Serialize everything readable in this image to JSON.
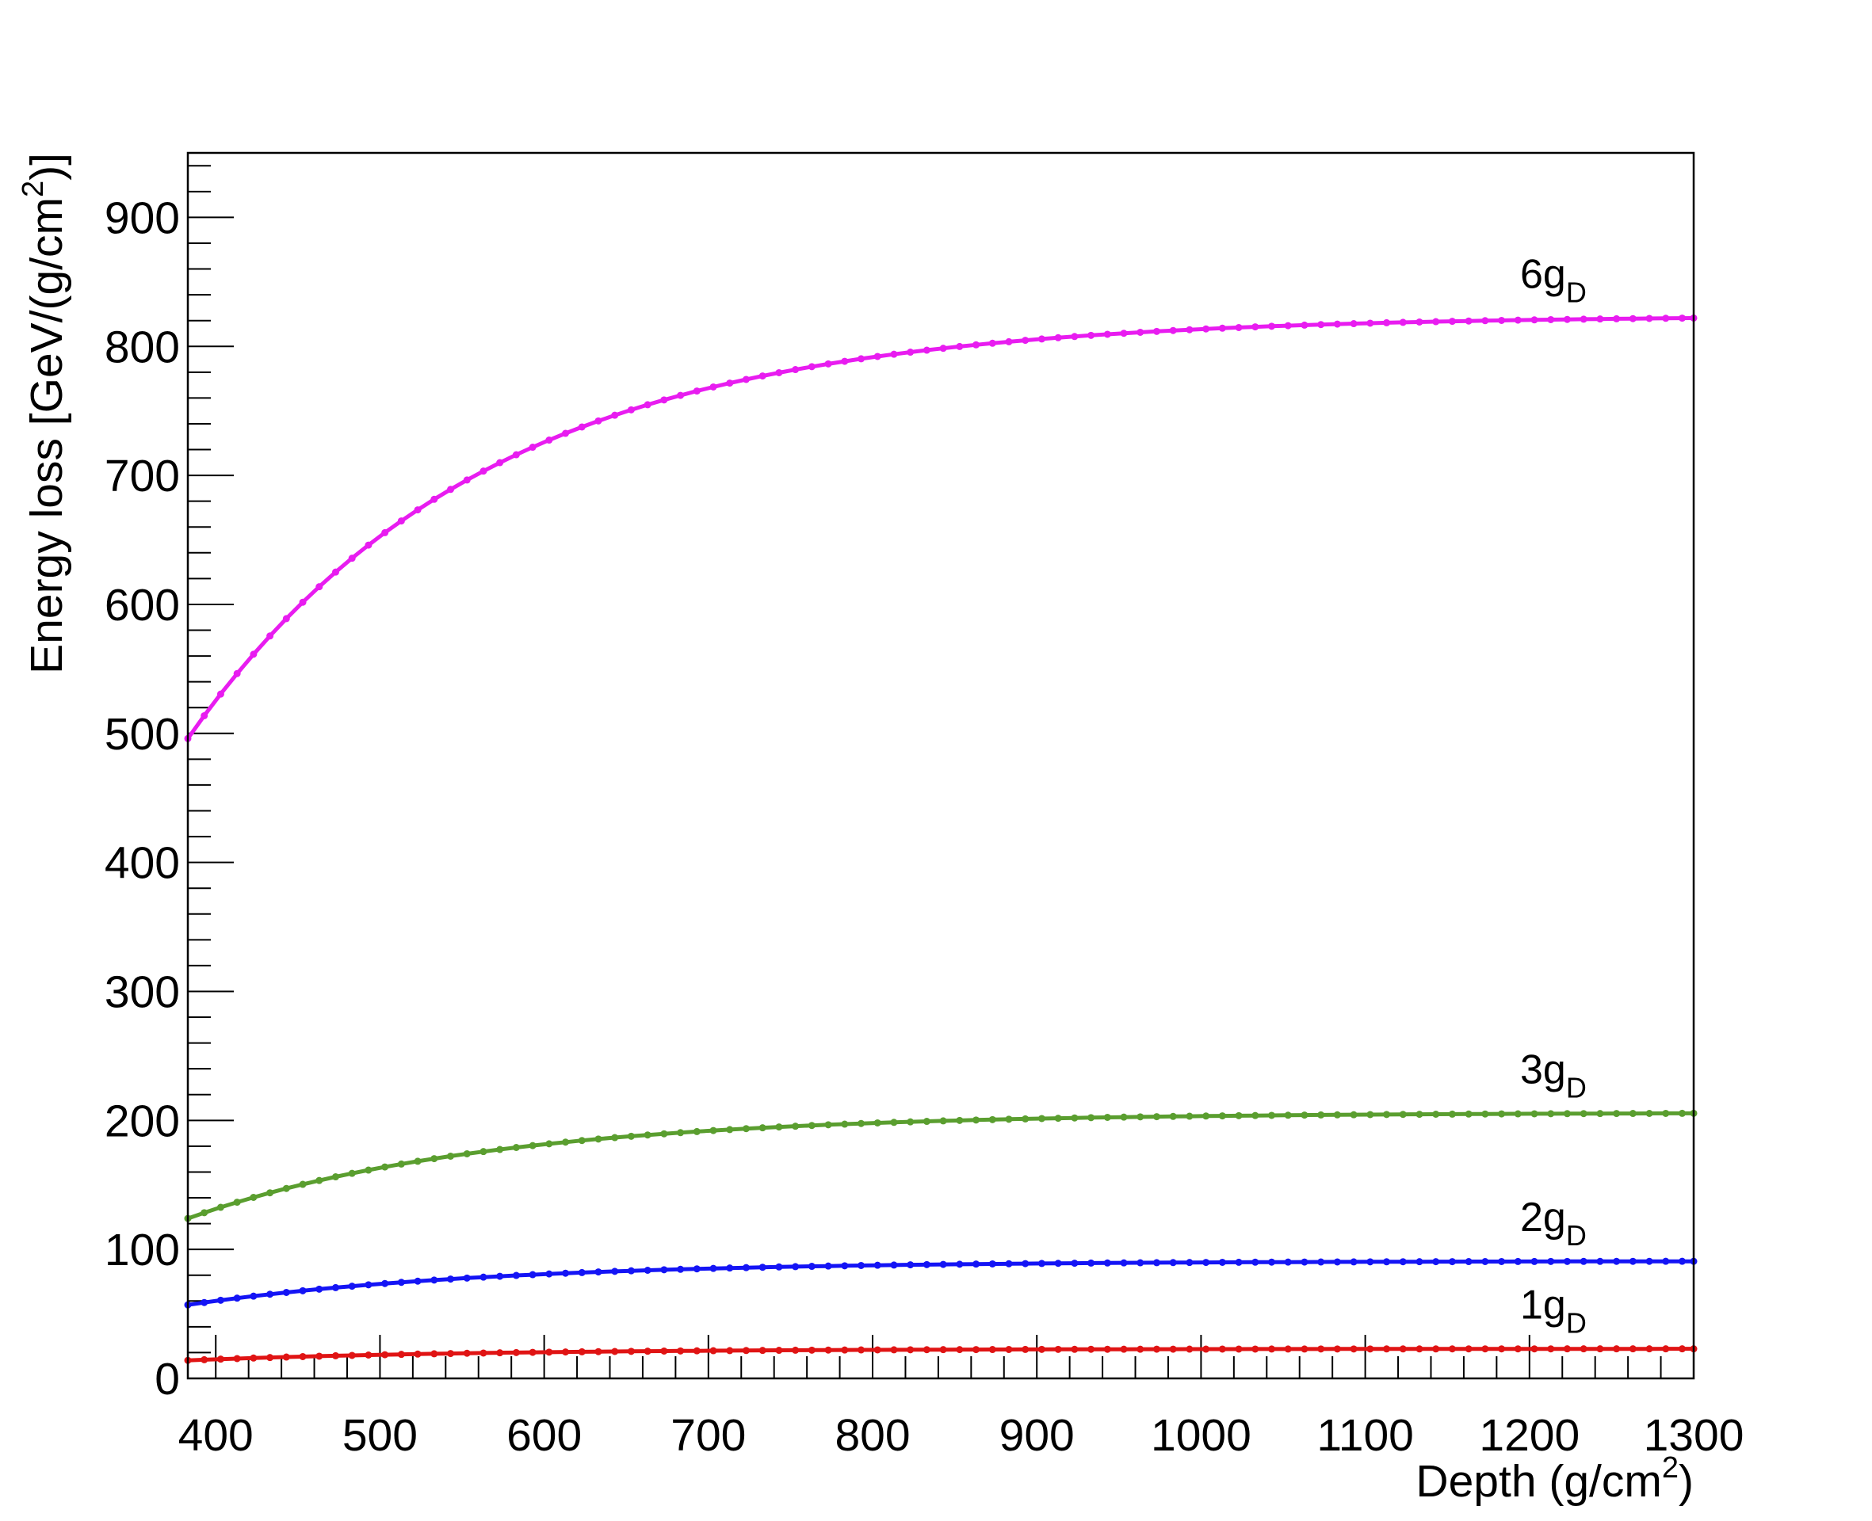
{
  "chart_data": {
    "type": "line",
    "title": "",
    "xlabel": {
      "main": "Depth (g/cm",
      "sup": "2",
      "close": ")"
    },
    "ylabel": {
      "main": "Energy loss [GeV/(g/cm",
      "sup": "2",
      "close": ")]"
    },
    "xlim": [
      383,
      1300
    ],
    "ylim": [
      0,
      950
    ],
    "x_ticks": [
      400,
      500,
      600,
      700,
      800,
      900,
      1000,
      1100,
      1200,
      1300
    ],
    "y_ticks": [
      0,
      100,
      200,
      300,
      400,
      500,
      600,
      700,
      800,
      900
    ],
    "grid": false,
    "legend": "none",
    "x_start": 383,
    "x_step": 10,
    "x_end": 1300,
    "series": [
      {
        "name": "6g",
        "sub": "D",
        "color": "#e81cf0",
        "model": {
          "plateau": 824,
          "start": 496,
          "scale": 180
        }
      },
      {
        "name": "3g",
        "sub": "D",
        "color": "#5a9e2f",
        "model": {
          "plateau": 206,
          "start": 124,
          "scale": 180
        }
      },
      {
        "name": "2g",
        "sub": "D",
        "color": "#1414f5",
        "model": {
          "plateau": 91,
          "start": 57,
          "scale": 180
        }
      },
      {
        "name": "1g",
        "sub": "D",
        "color": "#e01414",
        "model": {
          "plateau": 23,
          "start": 14,
          "scale": 180
        }
      }
    ]
  }
}
